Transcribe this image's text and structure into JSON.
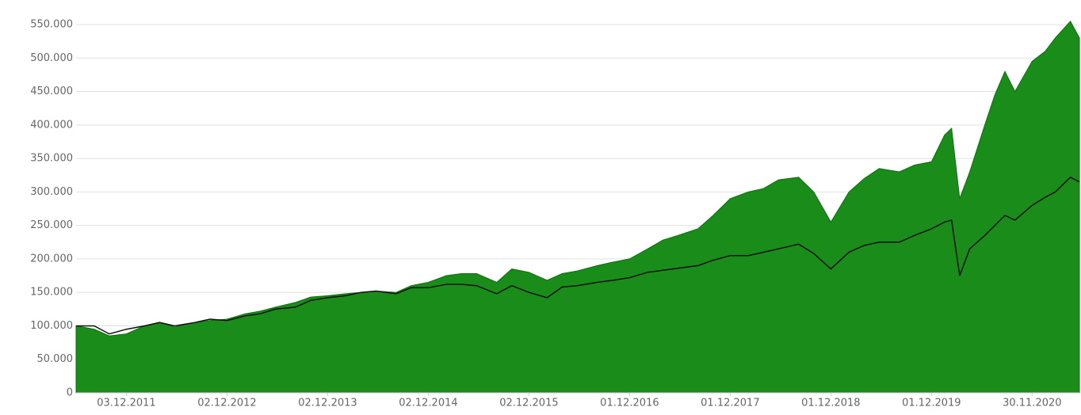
{
  "chart_data": {
    "type": "line",
    "x": [
      2011.42,
      2011.6,
      2011.75,
      2011.92,
      2012.1,
      2012.25,
      2012.4,
      2012.6,
      2012.75,
      2012.92,
      2013.1,
      2013.25,
      2013.4,
      2013.6,
      2013.75,
      2013.92,
      2014.1,
      2014.25,
      2014.4,
      2014.6,
      2014.75,
      2014.92,
      2015.1,
      2015.25,
      2015.4,
      2015.6,
      2015.75,
      2015.92,
      2016.1,
      2016.25,
      2016.4,
      2016.6,
      2016.75,
      2016.92,
      2017.1,
      2017.25,
      2017.4,
      2017.6,
      2017.75,
      2017.92,
      2018.1,
      2018.25,
      2018.4,
      2018.6,
      2018.75,
      2018.92,
      2019.1,
      2019.25,
      2019.4,
      2019.6,
      2019.75,
      2019.92,
      2020.05,
      2020.12,
      2020.2,
      2020.3,
      2020.45,
      2020.55,
      2020.65,
      2020.75,
      2020.92,
      2021.05,
      2021.15,
      2021.3,
      2021.39
    ],
    "series": [
      {
        "kind": "area",
        "color": "#1a8c1a",
        "values": [
          100000,
          95000,
          85000,
          88000,
          100000,
          105000,
          98000,
          105000,
          108000,
          110000,
          118000,
          122000,
          128000,
          135000,
          143000,
          145000,
          148000,
          150000,
          152000,
          150000,
          160000,
          165000,
          175000,
          178000,
          178000,
          165000,
          185000,
          180000,
          168000,
          178000,
          182000,
          190000,
          195000,
          200000,
          215000,
          228000,
          235000,
          245000,
          265000,
          290000,
          300000,
          305000,
          318000,
          322000,
          300000,
          255000,
          300000,
          320000,
          335000,
          330000,
          340000,
          345000,
          385000,
          395000,
          290000,
          330000,
          400000,
          445000,
          480000,
          450000,
          495000,
          510000,
          530000,
          555000,
          530000
        ]
      },
      {
        "kind": "line",
        "color": "#111111",
        "values": [
          100000,
          100000,
          88000,
          95000,
          100000,
          105000,
          100000,
          105000,
          110000,
          108000,
          115000,
          118000,
          125000,
          128000,
          138000,
          142000,
          145000,
          150000,
          152000,
          148000,
          157000,
          157000,
          162000,
          162000,
          160000,
          148000,
          160000,
          150000,
          142000,
          158000,
          160000,
          165000,
          168000,
          172000,
          180000,
          183000,
          186000,
          190000,
          198000,
          205000,
          205000,
          210000,
          215000,
          222000,
          208000,
          185000,
          210000,
          220000,
          225000,
          225000,
          235000,
          245000,
          255000,
          258000,
          175000,
          215000,
          235000,
          250000,
          265000,
          258000,
          280000,
          292000,
          300000,
          322000,
          315000
        ]
      }
    ],
    "xlim": [
      2011.42,
      2021.39
    ],
    "xticks": [
      {
        "value": 2011.92,
        "label": "03.12.2011"
      },
      {
        "value": 2012.92,
        "label": "02.12.2012"
      },
      {
        "value": 2013.92,
        "label": "02.12.2013"
      },
      {
        "value": 2014.92,
        "label": "02.12.2014"
      },
      {
        "value": 2015.92,
        "label": "02.12.2015"
      },
      {
        "value": 2016.92,
        "label": "01.12.2016"
      },
      {
        "value": 2017.92,
        "label": "01.12.2017"
      },
      {
        "value": 2018.92,
        "label": "01.12.2018"
      },
      {
        "value": 2019.92,
        "label": "01.12.2019"
      },
      {
        "value": 2020.92,
        "label": "30.11.2020"
      }
    ],
    "ylim": [
      0,
      550000
    ],
    "yticks": [
      0,
      {
        "value": 50000,
        "label": "50.000"
      },
      {
        "value": 100000,
        "label": "100.000"
      },
      {
        "value": 150000,
        "label": "150.000"
      },
      {
        "value": 200000,
        "label": "200.000"
      },
      {
        "value": 250000,
        "label": "250.000"
      },
      {
        "value": 300000,
        "label": "300.000"
      },
      {
        "value": 350000,
        "label": "350.000"
      },
      {
        "value": 400000,
        "label": "400.000"
      },
      {
        "value": 450000,
        "label": "450.000"
      },
      {
        "value": 500000,
        "label": "500.000"
      },
      {
        "value": 550000,
        "label": "550.000"
      }
    ],
    "grid": true
  }
}
